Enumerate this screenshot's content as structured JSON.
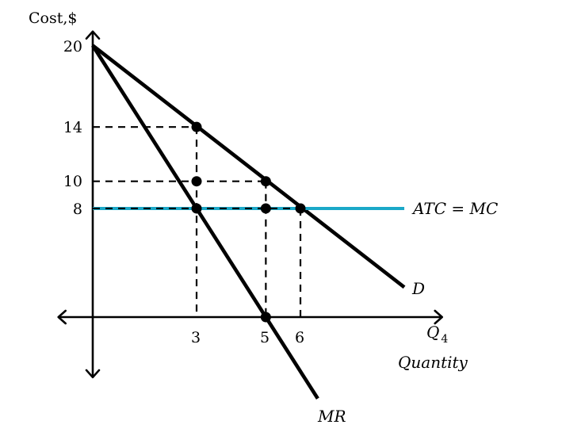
{
  "chart_data": {
    "type": "line",
    "ylabel": "Cost,$",
    "x_axis_label": "Q",
    "x_axis_label_subscript": "4",
    "x_axis_name": "Quantity",
    "ylim": [
      -4.2,
      20.8
    ],
    "xlim": [
      -0.9,
      10
    ],
    "y_ticks": [
      "20",
      "14",
      "10",
      "8"
    ],
    "x_ticks": [
      "3",
      "5",
      "6"
    ],
    "colors": {
      "atc_mc": "#1ba8c8",
      "curves": "#000000"
    },
    "series": [
      {
        "name": "D",
        "points": [
          [
            0,
            20
          ],
          [
            9,
            2.2
          ]
        ]
      },
      {
        "name": "MR",
        "points": [
          [
            0,
            20
          ],
          [
            6.5,
            -6
          ]
        ]
      },
      {
        "name": "ATC = MC",
        "points": [
          [
            0,
            8
          ],
          [
            9,
            8
          ]
        ]
      }
    ],
    "points": [
      {
        "x": 3,
        "y": 14
      },
      {
        "x": 5,
        "y": 10
      },
      {
        "x": 6,
        "y": 8
      },
      {
        "x": 3,
        "y": 10
      },
      {
        "x": 3,
        "y": 8
      },
      {
        "x": 5,
        "y": 8
      },
      {
        "x": 5,
        "y": 0
      }
    ],
    "dashed_guides": [
      {
        "from": [
          0,
          14
        ],
        "to": [
          3,
          14
        ]
      },
      {
        "from": [
          0,
          10
        ],
        "to": [
          5,
          10
        ]
      },
      {
        "from": [
          0,
          8
        ],
        "to": [
          6,
          8
        ]
      },
      {
        "from": [
          3,
          14
        ],
        "to": [
          3,
          0
        ]
      },
      {
        "from": [
          5,
          10
        ],
        "to": [
          5,
          0
        ]
      },
      {
        "from": [
          6,
          8
        ],
        "to": [
          6,
          0
        ]
      }
    ]
  }
}
